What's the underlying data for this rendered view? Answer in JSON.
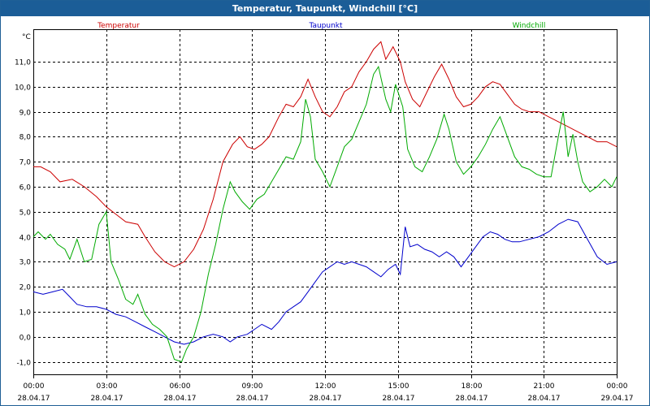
{
  "window": {
    "title": "Temperatur, Taupunkt, Windchill [°C]"
  },
  "chart_data": {
    "type": "line",
    "title": "Temperatur, Taupunkt, Windchill [°C]",
    "ylabel": "°C",
    "ylim": [
      -1.5,
      12.3
    ],
    "xlim": [
      0,
      24
    ],
    "grid": true,
    "legend": "top",
    "y_ticks": [
      "-1,0",
      "0,0",
      "1,0",
      "2,0",
      "3,0",
      "4,0",
      "5,0",
      "6,0",
      "7,0",
      "8,0",
      "9,0",
      "10,0",
      "11,0"
    ],
    "y_tick_values": [
      -1,
      0,
      1,
      2,
      3,
      4,
      5,
      6,
      7,
      8,
      9,
      10,
      11
    ],
    "x_ticks": [
      {
        "h": 0,
        "time": "00:00",
        "date": "28.04.17"
      },
      {
        "h": 3,
        "time": "03:00",
        "date": "28.04.17"
      },
      {
        "h": 6,
        "time": "06:00",
        "date": "28.04.17"
      },
      {
        "h": 9,
        "time": "09:00",
        "date": "28.04.17"
      },
      {
        "h": 12,
        "time": "12:00",
        "date": "28.04.17"
      },
      {
        "h": 15,
        "time": "15:00",
        "date": "28.04.17"
      },
      {
        "h": 18,
        "time": "18:00",
        "date": "28.04.17"
      },
      {
        "h": 21,
        "time": "21:00",
        "date": "28.04.17"
      },
      {
        "h": 24,
        "time": "00:00",
        "date": "29.04.17"
      }
    ],
    "series": [
      {
        "name": "Temperatur",
        "color": "#cc0000",
        "points": [
          [
            0,
            6.8
          ],
          [
            0.3,
            6.8
          ],
          [
            0.7,
            6.6
          ],
          [
            1.1,
            6.2
          ],
          [
            1.6,
            6.3
          ],
          [
            2.1,
            6.0
          ],
          [
            2.6,
            5.6
          ],
          [
            3.0,
            5.2
          ],
          [
            3.4,
            4.9
          ],
          [
            3.8,
            4.6
          ],
          [
            4.3,
            4.5
          ],
          [
            4.6,
            4.0
          ],
          [
            5.0,
            3.4
          ],
          [
            5.4,
            3.0
          ],
          [
            5.8,
            2.8
          ],
          [
            6.2,
            3.0
          ],
          [
            6.6,
            3.5
          ],
          [
            7.0,
            4.3
          ],
          [
            7.4,
            5.5
          ],
          [
            7.8,
            7.0
          ],
          [
            8.2,
            7.7
          ],
          [
            8.5,
            8.0
          ],
          [
            8.8,
            7.6
          ],
          [
            9.1,
            7.5
          ],
          [
            9.4,
            7.7
          ],
          [
            9.7,
            8.0
          ],
          [
            10.1,
            8.8
          ],
          [
            10.4,
            9.3
          ],
          [
            10.7,
            9.2
          ],
          [
            11.0,
            9.6
          ],
          [
            11.3,
            10.3
          ],
          [
            11.6,
            9.6
          ],
          [
            11.9,
            9.0
          ],
          [
            12.2,
            8.8
          ],
          [
            12.5,
            9.2
          ],
          [
            12.8,
            9.8
          ],
          [
            13.1,
            10.0
          ],
          [
            13.4,
            10.6
          ],
          [
            13.7,
            11.0
          ],
          [
            14.0,
            11.5
          ],
          [
            14.3,
            11.8
          ],
          [
            14.5,
            11.1
          ],
          [
            14.8,
            11.6
          ],
          [
            15.1,
            11.0
          ],
          [
            15.3,
            10.2
          ],
          [
            15.6,
            9.5
          ],
          [
            15.9,
            9.2
          ],
          [
            16.2,
            9.8
          ],
          [
            16.5,
            10.4
          ],
          [
            16.8,
            10.9
          ],
          [
            17.1,
            10.3
          ],
          [
            17.4,
            9.6
          ],
          [
            17.7,
            9.2
          ],
          [
            18.0,
            9.3
          ],
          [
            18.3,
            9.6
          ],
          [
            18.6,
            10.0
          ],
          [
            18.9,
            10.2
          ],
          [
            19.2,
            10.1
          ],
          [
            19.5,
            9.7
          ],
          [
            19.8,
            9.3
          ],
          [
            20.1,
            9.1
          ],
          [
            20.4,
            9.0
          ],
          [
            20.8,
            9.0
          ],
          [
            21.2,
            8.8
          ],
          [
            21.6,
            8.6
          ],
          [
            22.0,
            8.4
          ],
          [
            22.4,
            8.2
          ],
          [
            22.8,
            8.0
          ],
          [
            23.2,
            7.8
          ],
          [
            23.6,
            7.8
          ],
          [
            24.0,
            7.6
          ]
        ]
      },
      {
        "name": "Taupunkt",
        "color": "#0000cc",
        "points": [
          [
            0,
            1.8
          ],
          [
            0.4,
            1.7
          ],
          [
            0.8,
            1.8
          ],
          [
            1.2,
            1.9
          ],
          [
            1.5,
            1.6
          ],
          [
            1.8,
            1.3
          ],
          [
            2.2,
            1.2
          ],
          [
            2.6,
            1.2
          ],
          [
            3.0,
            1.1
          ],
          [
            3.4,
            0.9
          ],
          [
            3.8,
            0.8
          ],
          [
            4.2,
            0.6
          ],
          [
            4.6,
            0.4
          ],
          [
            5.0,
            0.2
          ],
          [
            5.4,
            0.0
          ],
          [
            5.8,
            -0.2
          ],
          [
            6.2,
            -0.3
          ],
          [
            6.6,
            -0.2
          ],
          [
            7.0,
            0.0
          ],
          [
            7.4,
            0.1
          ],
          [
            7.8,
            0.0
          ],
          [
            8.1,
            -0.2
          ],
          [
            8.4,
            0.0
          ],
          [
            8.8,
            0.1
          ],
          [
            9.1,
            0.3
          ],
          [
            9.4,
            0.5
          ],
          [
            9.8,
            0.3
          ],
          [
            10.1,
            0.6
          ],
          [
            10.4,
            1.0
          ],
          [
            10.7,
            1.2
          ],
          [
            11.0,
            1.4
          ],
          [
            11.3,
            1.8
          ],
          [
            11.6,
            2.2
          ],
          [
            11.9,
            2.6
          ],
          [
            12.2,
            2.8
          ],
          [
            12.5,
            3.0
          ],
          [
            12.8,
            2.9
          ],
          [
            13.1,
            3.0
          ],
          [
            13.4,
            2.9
          ],
          [
            13.7,
            2.8
          ],
          [
            14.0,
            2.6
          ],
          [
            14.3,
            2.4
          ],
          [
            14.6,
            2.7
          ],
          [
            14.9,
            2.9
          ],
          [
            15.1,
            2.5
          ],
          [
            15.3,
            4.4
          ],
          [
            15.5,
            3.6
          ],
          [
            15.8,
            3.7
          ],
          [
            16.1,
            3.5
          ],
          [
            16.4,
            3.4
          ],
          [
            16.7,
            3.2
          ],
          [
            17.0,
            3.4
          ],
          [
            17.3,
            3.2
          ],
          [
            17.6,
            2.8
          ],
          [
            17.9,
            3.2
          ],
          [
            18.2,
            3.6
          ],
          [
            18.5,
            4.0
          ],
          [
            18.8,
            4.2
          ],
          [
            19.1,
            4.1
          ],
          [
            19.4,
            3.9
          ],
          [
            19.7,
            3.8
          ],
          [
            20.0,
            3.8
          ],
          [
            20.4,
            3.9
          ],
          [
            20.8,
            4.0
          ],
          [
            21.2,
            4.2
          ],
          [
            21.6,
            4.5
          ],
          [
            22.0,
            4.7
          ],
          [
            22.4,
            4.6
          ],
          [
            22.8,
            3.9
          ],
          [
            23.2,
            3.2
          ],
          [
            23.6,
            2.9
          ],
          [
            24.0,
            3.0
          ]
        ]
      },
      {
        "name": "Windchill",
        "color": "#00aa00",
        "points": [
          [
            0,
            4.0
          ],
          [
            0.2,
            4.2
          ],
          [
            0.5,
            3.9
          ],
          [
            0.7,
            4.1
          ],
          [
            1.0,
            3.7
          ],
          [
            1.3,
            3.5
          ],
          [
            1.5,
            3.1
          ],
          [
            1.8,
            3.9
          ],
          [
            2.1,
            3.0
          ],
          [
            2.4,
            3.1
          ],
          [
            2.7,
            4.5
          ],
          [
            3.0,
            5.0
          ],
          [
            3.2,
            3.0
          ],
          [
            3.5,
            2.3
          ],
          [
            3.8,
            1.5
          ],
          [
            4.1,
            1.3
          ],
          [
            4.3,
            1.7
          ],
          [
            4.6,
            0.9
          ],
          [
            4.9,
            0.5
          ],
          [
            5.2,
            0.3
          ],
          [
            5.5,
            0.0
          ],
          [
            5.8,
            -0.9
          ],
          [
            6.1,
            -1.0
          ],
          [
            6.3,
            -0.5
          ],
          [
            6.6,
            0.0
          ],
          [
            6.9,
            1.0
          ],
          [
            7.2,
            2.5
          ],
          [
            7.5,
            3.7
          ],
          [
            7.8,
            5.1
          ],
          [
            8.1,
            6.2
          ],
          [
            8.3,
            5.8
          ],
          [
            8.6,
            5.4
          ],
          [
            8.9,
            5.1
          ],
          [
            9.2,
            5.5
          ],
          [
            9.5,
            5.7
          ],
          [
            9.8,
            6.2
          ],
          [
            10.1,
            6.7
          ],
          [
            10.4,
            7.2
          ],
          [
            10.7,
            7.1
          ],
          [
            11.0,
            7.8
          ],
          [
            11.2,
            9.5
          ],
          [
            11.4,
            8.8
          ],
          [
            11.6,
            7.1
          ],
          [
            11.9,
            6.6
          ],
          [
            12.2,
            6.0
          ],
          [
            12.5,
            6.8
          ],
          [
            12.8,
            7.6
          ],
          [
            13.1,
            7.9
          ],
          [
            13.4,
            8.6
          ],
          [
            13.7,
            9.3
          ],
          [
            14.0,
            10.5
          ],
          [
            14.2,
            10.8
          ],
          [
            14.5,
            9.5
          ],
          [
            14.7,
            9.0
          ],
          [
            14.9,
            10.1
          ],
          [
            15.2,
            9.2
          ],
          [
            15.4,
            7.5
          ],
          [
            15.7,
            6.8
          ],
          [
            16.0,
            6.6
          ],
          [
            16.3,
            7.2
          ],
          [
            16.6,
            7.9
          ],
          [
            16.9,
            8.9
          ],
          [
            17.1,
            8.3
          ],
          [
            17.4,
            7.0
          ],
          [
            17.7,
            6.5
          ],
          [
            18.0,
            6.8
          ],
          [
            18.3,
            7.2
          ],
          [
            18.6,
            7.7
          ],
          [
            18.9,
            8.3
          ],
          [
            19.2,
            8.8
          ],
          [
            19.5,
            8.0
          ],
          [
            19.8,
            7.2
          ],
          [
            20.1,
            6.8
          ],
          [
            20.4,
            6.7
          ],
          [
            20.7,
            6.5
          ],
          [
            21.0,
            6.4
          ],
          [
            21.3,
            6.4
          ],
          [
            21.6,
            8.0
          ],
          [
            21.8,
            9.0
          ],
          [
            22.0,
            7.2
          ],
          [
            22.2,
            8.1
          ],
          [
            22.4,
            7.0
          ],
          [
            22.6,
            6.2
          ],
          [
            22.9,
            5.8
          ],
          [
            23.2,
            6.0
          ],
          [
            23.5,
            6.3
          ],
          [
            23.8,
            6.0
          ],
          [
            24.0,
            6.4
          ]
        ]
      }
    ]
  }
}
